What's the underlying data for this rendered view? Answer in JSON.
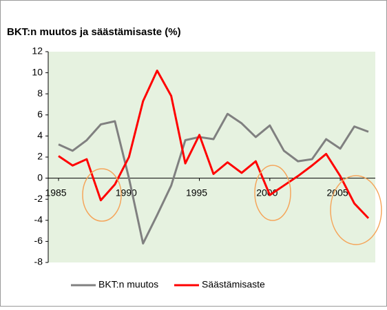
{
  "chart_data": {
    "type": "line",
    "title": "BKT:n muutos ja säästämisaste (%)",
    "x": [
      1985,
      1986,
      1987,
      1988,
      1989,
      1990,
      1991,
      1992,
      1993,
      1994,
      1995,
      1996,
      1997,
      1998,
      1999,
      2000,
      2001,
      2002,
      2003,
      2004,
      2005,
      2006,
      2007
    ],
    "series": [
      {
        "name": "BKT:n muutos",
        "color": "#808080",
        "values": [
          3.2,
          2.6,
          3.6,
          5.1,
          5.4,
          0.0,
          -6.2,
          -3.5,
          -0.7,
          3.6,
          3.9,
          3.7,
          6.1,
          5.2,
          3.9,
          5.0,
          2.6,
          1.6,
          1.8,
          3.7,
          2.8,
          4.9,
          4.4
        ]
      },
      {
        "name": "Säästämisaste",
        "color": "#ff0000",
        "values": [
          2.1,
          1.2,
          1.8,
          -2.1,
          -0.6,
          2.0,
          7.3,
          10.2,
          7.8,
          1.4,
          4.1,
          0.4,
          1.5,
          0.5,
          1.6,
          -1.6,
          -0.7,
          0.2,
          1.2,
          2.3,
          0.2,
          -2.4,
          -3.8
        ]
      }
    ],
    "xlim": [
      1985,
      2007
    ],
    "xticks": [
      1985,
      1990,
      1995,
      2000,
      2005
    ],
    "ylim": [
      -8,
      12
    ],
    "yticks": [
      -8,
      -6,
      -4,
      -2,
      0,
      2,
      4,
      6,
      8,
      10,
      12
    ],
    "legend": "bottom"
  }
}
